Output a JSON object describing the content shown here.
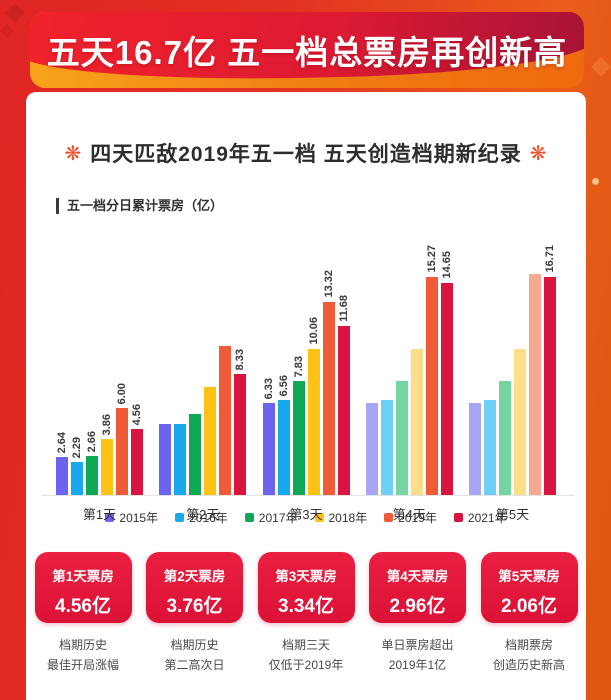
{
  "banner": {
    "title": "五天16.7亿 五一档总票房再创新高"
  },
  "card": {
    "headline": "四天匹敌2019年五一档 五天创造档期新纪录",
    "decor_glyph": "❋"
  },
  "chart": {
    "label": "五一档分日累计票房（亿）"
  },
  "chart_data": {
    "type": "bar",
    "title": "五一档分日累计票房（亿）",
    "categories": [
      "第1天",
      "第2天",
      "第3天",
      "第4天",
      "第5天"
    ],
    "ylim": [
      0,
      17
    ],
    "grid": false,
    "legend_position": "bottom",
    "series": [
      {
        "name": "2015年",
        "color": "#6C63F0",
        "faded_color": "#A9A5F5",
        "values": [
          2.64,
          4.9,
          6.33,
          6.33,
          6.33
        ],
        "labels": [
          "2.64",
          null,
          "6.33",
          null,
          null
        ],
        "faded": [
          false,
          false,
          false,
          true,
          true
        ]
      },
      {
        "name": "2016年",
        "color": "#18A8EC",
        "faded_color": "#6FD0F7",
        "values": [
          2.29,
          4.9,
          6.56,
          6.56,
          6.56
        ],
        "labels": [
          "2.29",
          null,
          "6.56",
          null,
          null
        ],
        "faded": [
          false,
          false,
          false,
          true,
          true
        ]
      },
      {
        "name": "2017年",
        "color": "#0FA854",
        "faded_color": "#74D4A2",
        "values": [
          2.66,
          5.58,
          7.83,
          7.83,
          7.83
        ],
        "labels": [
          "2.66",
          null,
          "7.83",
          null,
          null
        ],
        "faded": [
          false,
          false,
          false,
          true,
          true
        ]
      },
      {
        "name": "2018年",
        "color": "#FFC213",
        "faded_color": "#FFDE8A",
        "values": [
          3.86,
          7.48,
          10.06,
          10.06,
          10.06
        ],
        "labels": [
          "3.86",
          null,
          "10.06",
          null,
          null
        ],
        "faded": [
          false,
          false,
          false,
          true,
          true
        ]
      },
      {
        "name": "2019年",
        "color": "#EF5B38",
        "faded_color": "#F5A98E",
        "values": [
          6.0,
          10.26,
          13.32,
          15.27,
          15.27
        ],
        "labels": [
          "6.00",
          null,
          "13.32",
          "15.27",
          null
        ],
        "faded": [
          false,
          false,
          false,
          false,
          true
        ]
      },
      {
        "name": "2021年",
        "color": "#DA1440",
        "faded_color": "#DA1440",
        "values": [
          4.56,
          8.33,
          11.68,
          14.65,
          16.71
        ],
        "labels": [
          "4.56",
          "8.33",
          "11.68",
          "14.65",
          "16.71"
        ],
        "faded": [
          false,
          false,
          false,
          false,
          false
        ]
      }
    ]
  },
  "summary": [
    {
      "title": "第1天票房",
      "value": "4.56亿",
      "caption_line1": "档期历史",
      "caption_line2": "最佳开局涨幅"
    },
    {
      "title": "第2天票房",
      "value": "3.76亿",
      "caption_line1": "档期历史",
      "caption_line2": "第二高次日"
    },
    {
      "title": "第3天票房",
      "value": "3.34亿",
      "caption_line1": "档期三天",
      "caption_line2": "仅低于2019年"
    },
    {
      "title": "第4天票房",
      "value": "2.96亿",
      "caption_line1": "单日票房超出",
      "caption_line2": "2019年1亿"
    },
    {
      "title": "第5天票房",
      "value": "2.06亿",
      "caption_line1": "档期票房",
      "caption_line2": "创造历史新高"
    }
  ],
  "palette": {
    "page_bg_left": "#E02525",
    "page_bg_right": "#DE560F",
    "banner_red": "#DD1A33",
    "banner_orange": "#F08012",
    "summary_box_red": "#E0163A",
    "headline_decor": "#F2502A",
    "text_dark": "#333333"
  }
}
